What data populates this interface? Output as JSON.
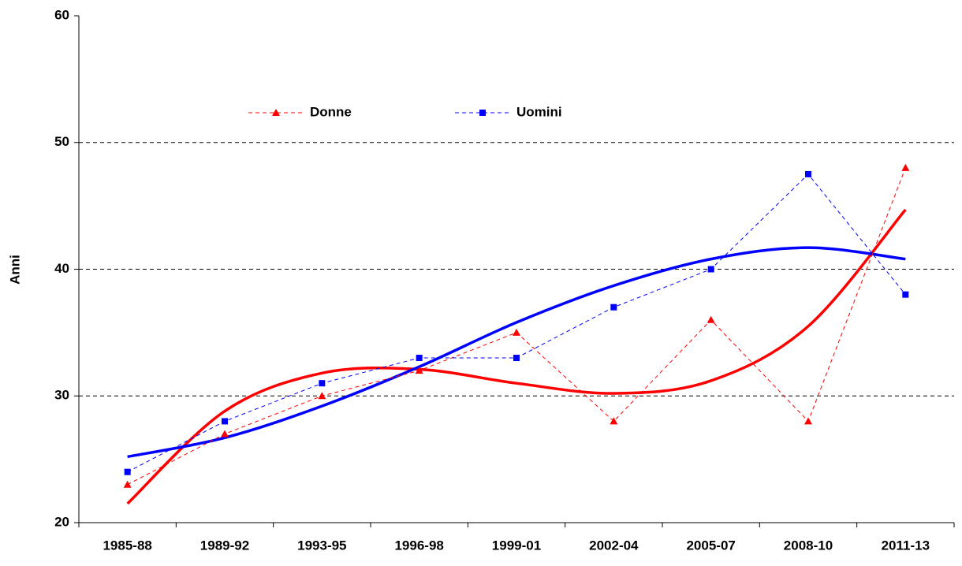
{
  "chart_data": {
    "type": "line",
    "y_label": "Anni",
    "categories": [
      "1985-88",
      "1989-92",
      "1993-95",
      "1996-98",
      "1999-01",
      "2002-04",
      "2005-07",
      "2008-10",
      "2011-13"
    ],
    "series": [
      {
        "name": "Donne",
        "color": "#ff0000",
        "marker": "triangle",
        "values": [
          23,
          27,
          30,
          32,
          35,
          28,
          36,
          28,
          48
        ]
      },
      {
        "name": "Uomini",
        "color": "#0000ff",
        "marker": "square",
        "values": [
          24,
          28,
          31,
          33,
          33,
          37,
          40,
          47.5,
          38
        ]
      }
    ],
    "trendlines": [
      {
        "color": "#ff0000",
        "values": [
          21.5,
          28.8,
          31.8,
          32.1,
          31.0,
          30.2,
          31.2,
          35.5,
          44.7
        ]
      },
      {
        "color": "#0000ff",
        "values": [
          25.2,
          26.7,
          29.2,
          32.3,
          35.8,
          38.7,
          40.8,
          41.7,
          40.8
        ]
      }
    ],
    "ylim": [
      20,
      60
    ],
    "yticks": [
      20,
      30,
      40,
      50,
      60
    ],
    "grid": true,
    "legend": "top-left"
  }
}
